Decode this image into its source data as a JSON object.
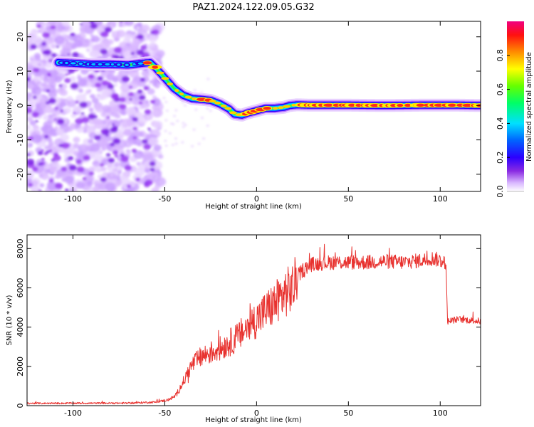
{
  "title": "PAZ1.2024.122.09.05.G32",
  "chart_data": [
    {
      "type": "heatmap",
      "xlabel": "Height of straight line (km)",
      "ylabel": "Frequency (Hz)",
      "xlim": [
        -125,
        122
      ],
      "ylim": [
        -25,
        24.5
      ],
      "x_ticks": [
        -100,
        -50,
        0,
        50,
        100
      ],
      "y_ticks": [
        -20,
        -10,
        0,
        10,
        20
      ],
      "ridge": {
        "x": [
          -108,
          -100,
          -90,
          -80,
          -70,
          -62,
          -58,
          -55,
          -50,
          -45,
          -40,
          -35,
          -30,
          -25,
          -20,
          -15,
          -12,
          -8,
          -5,
          0,
          5,
          10,
          15,
          18,
          22,
          30,
          50,
          70,
          90,
          110,
          122
        ],
        "y": [
          12.5,
          12.3,
          12.0,
          12.0,
          11.8,
          12.3,
          12.5,
          11.0,
          8.0,
          5.0,
          3.0,
          2.0,
          1.8,
          1.5,
          0.5,
          -1.0,
          -2.5,
          -2.8,
          -2.2,
          -1.5,
          -0.8,
          -0.8,
          -0.5,
          0.0,
          0.2,
          0.1,
          0.1,
          0.0,
          0.1,
          0.1,
          0.0
        ]
      },
      "colorbar": {
        "label": "Normalized spectral amplitude",
        "range": [
          0,
          1
        ],
        "ticks": [
          "0.0",
          "0.2",
          "0.4",
          "0.6",
          "0.8"
        ]
      }
    },
    {
      "type": "line",
      "xlabel": "Height of straight line (km)",
      "ylabel": "SNR (10 * v/v)",
      "xlim": [
        -125,
        122
      ],
      "ylim": [
        0,
        8700
      ],
      "x_ticks": [
        -100,
        -50,
        0,
        50,
        100
      ],
      "y_ticks": [
        0,
        2000,
        4000,
        6000,
        8000
      ],
      "color": "#e8322f",
      "envelope": {
        "x": [
          -125,
          -70,
          -55,
          -48,
          -44,
          -40,
          -35,
          -30,
          -25,
          -20,
          -15,
          -10,
          -5,
          0,
          5,
          10,
          15,
          20,
          22,
          25,
          30,
          40,
          50,
          60,
          70,
          80,
          90,
          96,
          100,
          103,
          104,
          110,
          122
        ],
        "y": [
          120,
          130,
          180,
          300,
          500,
          1200,
          2100,
          2500,
          2700,
          2900,
          3200,
          3500,
          4000,
          4400,
          4800,
          5200,
          5700,
          6000,
          6500,
          6900,
          7200,
          7300,
          7300,
          7300,
          7350,
          7300,
          7400,
          7500,
          7400,
          7300,
          4300,
          4400,
          4300
        ]
      }
    }
  ]
}
